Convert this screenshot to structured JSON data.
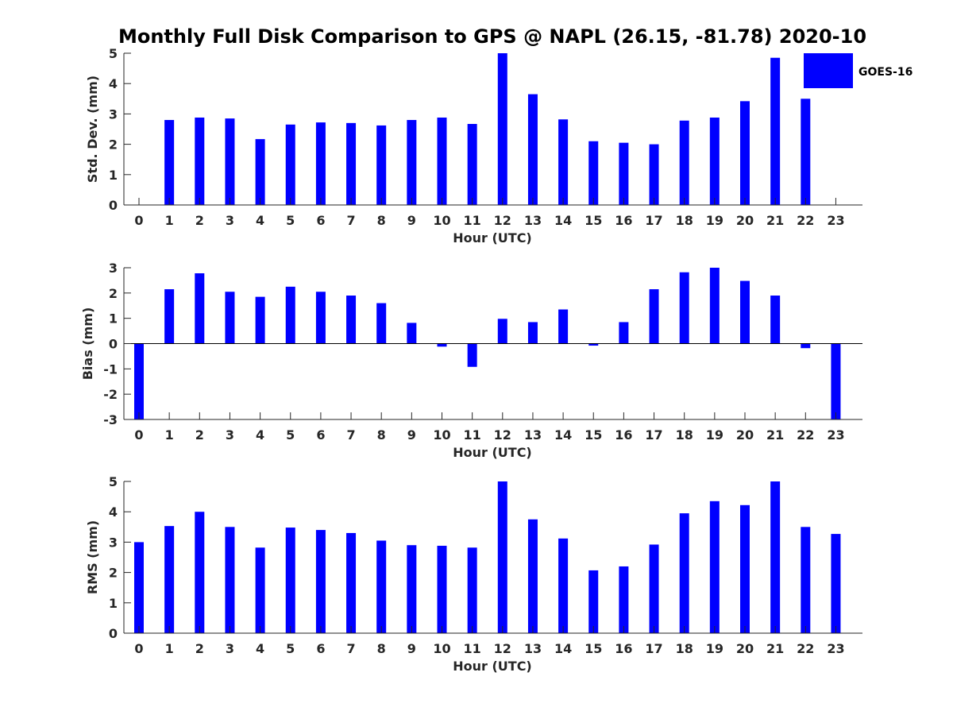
{
  "title": "Monthly Full Disk Comparison to GPS @ NAPL (26.15, -81.78) 2020-10",
  "colors": {
    "bar": "#0000ff",
    "axis": "#262626"
  },
  "chart_data": [
    {
      "type": "bar",
      "ylabel": "Std. Dev. (mm)",
      "xlabel": "Hour (UTC)",
      "ylim": [
        0,
        5
      ],
      "yticks": [
        0,
        1,
        2,
        3,
        4,
        5
      ],
      "categories": [
        "0",
        "1",
        "2",
        "3",
        "4",
        "5",
        "6",
        "7",
        "8",
        "9",
        "10",
        "11",
        "12",
        "13",
        "14",
        "15",
        "16",
        "17",
        "18",
        "19",
        "20",
        "21",
        "22",
        "23"
      ],
      "series": [
        {
          "name": "GOES-16",
          "values": [
            0,
            2.8,
            2.88,
            2.85,
            2.17,
            2.65,
            2.72,
            2.7,
            2.62,
            2.8,
            2.88,
            2.67,
            5.0,
            3.65,
            2.82,
            2.1,
            2.05,
            2.0,
            2.78,
            2.88,
            3.42,
            4.85,
            3.5,
            0
          ]
        }
      ],
      "legend": {
        "entries": [
          "GOES-16"
        ],
        "position": "top-right"
      }
    },
    {
      "type": "bar",
      "ylabel": "Bias (mm)",
      "xlabel": "Hour (UTC)",
      "ylim": [
        -3,
        3
      ],
      "yticks": [
        -3,
        -2,
        -1,
        0,
        1,
        2,
        3
      ],
      "categories": [
        "0",
        "1",
        "2",
        "3",
        "4",
        "5",
        "6",
        "7",
        "8",
        "9",
        "10",
        "11",
        "12",
        "13",
        "14",
        "15",
        "16",
        "17",
        "18",
        "19",
        "20",
        "21",
        "22",
        "23"
      ],
      "series": [
        {
          "name": "GOES-16",
          "values": [
            -3.0,
            2.15,
            2.78,
            2.05,
            1.85,
            2.25,
            2.05,
            1.9,
            1.6,
            0.82,
            -0.12,
            -0.92,
            0.98,
            0.85,
            1.35,
            -0.08,
            0.85,
            2.15,
            2.82,
            3.0,
            2.48,
            1.9,
            -0.18,
            -3.0
          ]
        }
      ]
    },
    {
      "type": "bar",
      "ylabel": "RMS (mm)",
      "xlabel": "Hour (UTC)",
      "ylim": [
        0,
        5
      ],
      "yticks": [
        0,
        1,
        2,
        3,
        4,
        5
      ],
      "categories": [
        "0",
        "1",
        "2",
        "3",
        "4",
        "5",
        "6",
        "7",
        "8",
        "9",
        "10",
        "11",
        "12",
        "13",
        "14",
        "15",
        "16",
        "17",
        "18",
        "19",
        "20",
        "21",
        "22",
        "23"
      ],
      "series": [
        {
          "name": "GOES-16",
          "values": [
            3.0,
            3.53,
            4.0,
            3.5,
            2.82,
            3.48,
            3.4,
            3.3,
            3.05,
            2.9,
            2.88,
            2.82,
            5.0,
            3.75,
            3.12,
            2.07,
            2.2,
            2.92,
            3.95,
            4.35,
            4.22,
            5.0,
            3.5,
            3.27
          ]
        }
      ]
    }
  ]
}
